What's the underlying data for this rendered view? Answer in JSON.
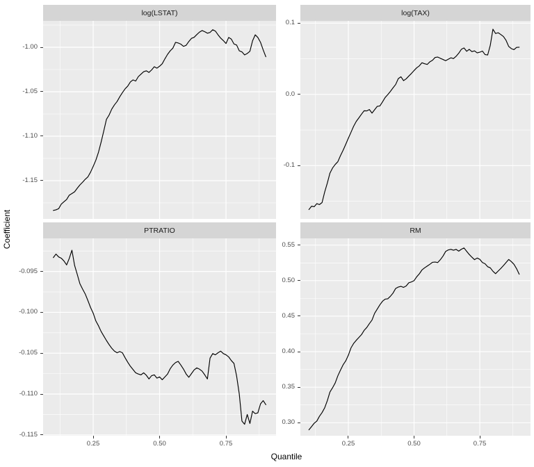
{
  "figure": {
    "y_axis_title": "Coefficient",
    "x_axis_title": "Quantile",
    "background": "#FFFFFF",
    "panel_background": "#EBEBEB",
    "strip_background": "#D5D5D5",
    "grid_major_color": "#FFFFFF",
    "grid_minor_color": "#F5F5F5",
    "line_color": "#000000",
    "axis_text_color": "#4D4D4D",
    "tick_mark_color": "#333333"
  },
  "x_axis": {
    "ticks": [
      {
        "v": 0.25,
        "label": "0.25"
      },
      {
        "v": 0.5,
        "label": "0.50"
      },
      {
        "v": 0.75,
        "label": "0.75"
      }
    ],
    "minor": [
      0.125,
      0.375,
      0.625,
      0.875
    ]
  },
  "chart_data": [
    {
      "type": "line",
      "title": "log(LSTAT)",
      "facet_position": "top-left",
      "xlabel": "Quantile",
      "ylabel": "Coefficient",
      "xlim": [
        0.0615,
        0.9384
      ],
      "ylim": [
        -1.193,
        -0.9703
      ],
      "grid": true,
      "legend": "none",
      "show_x_labels": false,
      "yticks": [
        {
          "v": -1.0,
          "label": "-1.00"
        },
        {
          "v": -1.05,
          "label": "-1.05"
        },
        {
          "v": -1.1,
          "label": "-1.10"
        },
        {
          "v": -1.15,
          "label": "-1.15"
        }
      ],
      "yminor": [
        -0.975,
        -1.025,
        -1.075,
        -1.125,
        -1.175
      ],
      "x": {
        "from": 0.1,
        "to": 0.9,
        "n": 81
      },
      "values": [
        -1.1835,
        -1.1828,
        -1.1815,
        -1.1763,
        -1.1737,
        -1.1712,
        -1.1663,
        -1.1645,
        -1.1625,
        -1.1585,
        -1.1548,
        -1.1518,
        -1.1485,
        -1.1458,
        -1.1405,
        -1.134,
        -1.127,
        -1.118,
        -1.1065,
        -1.094,
        -1.081,
        -1.0762,
        -1.0695,
        -1.0648,
        -1.061,
        -1.0557,
        -1.051,
        -1.0468,
        -1.0437,
        -1.039,
        -1.0367,
        -1.038,
        -1.033,
        -1.0302,
        -1.0275,
        -1.0265,
        -1.0283,
        -1.0255,
        -1.0219,
        -1.0235,
        -1.0213,
        -1.0185,
        -1.013,
        -1.008,
        -1.004,
        -1.001,
        -0.9945,
        -0.9952,
        -0.9965,
        -0.999,
        -0.9978,
        -0.9935,
        -0.99,
        -0.9888,
        -0.9858,
        -0.983,
        -0.9812,
        -0.9825,
        -0.9842,
        -0.9833,
        -0.9803,
        -0.9818,
        -0.986,
        -0.9897,
        -0.9925,
        -0.9958,
        -0.989,
        -0.9908,
        -0.9963,
        -0.9975,
        -1.004,
        -1.0052,
        -1.0086,
        -1.007,
        -1.0045,
        -0.9928,
        -0.986,
        -0.989,
        -0.9945,
        -1.003,
        -1.0107
      ]
    },
    {
      "type": "line",
      "title": "log(TAX)",
      "facet_position": "top-right",
      "xlabel": "Quantile",
      "ylabel": "Coefficient",
      "xlim": [
        0.0675,
        0.943
      ],
      "ylim": [
        -0.1748,
        0.1032
      ],
      "grid": true,
      "legend": "none",
      "show_x_labels": false,
      "yticks": [
        {
          "v": 0.1,
          "label": "0.1"
        },
        {
          "v": 0.0,
          "label": "0.0"
        },
        {
          "v": -0.1,
          "label": "-0.1"
        }
      ],
      "yminor": [
        0.05,
        -0.05,
        -0.15
      ],
      "x": {
        "from": 0.1,
        "to": 0.9,
        "n": 81
      },
      "values": [
        -0.1617,
        -0.157,
        -0.1577,
        -0.1534,
        -0.1547,
        -0.1519,
        -0.137,
        -0.1245,
        -0.1105,
        -0.1033,
        -0.0984,
        -0.0945,
        -0.086,
        -0.0785,
        -0.0702,
        -0.0615,
        -0.0533,
        -0.0448,
        -0.038,
        -0.033,
        -0.0278,
        -0.023,
        -0.0232,
        -0.0213,
        -0.0263,
        -0.0215,
        -0.0168,
        -0.0162,
        -0.0105,
        -0.0044,
        -0.0003,
        0.0042,
        0.0092,
        0.0139,
        0.0221,
        0.0247,
        0.0193,
        0.0218,
        0.0257,
        0.0294,
        0.0335,
        0.0373,
        0.04,
        0.0444,
        0.043,
        0.042,
        0.0457,
        0.0478,
        0.0518,
        0.0524,
        0.0506,
        0.049,
        0.0472,
        0.0493,
        0.0513,
        0.0502,
        0.0535,
        0.0578,
        0.0633,
        0.0652,
        0.0605,
        0.0632,
        0.06,
        0.0611,
        0.0583,
        0.0592,
        0.0608,
        0.0558,
        0.0553,
        0.069,
        0.0915,
        0.0855,
        0.0865,
        0.084,
        0.0812,
        0.0758,
        0.0673,
        0.0642,
        0.0628,
        0.066,
        0.0662
      ]
    },
    {
      "type": "line",
      "title": "PTRATIO",
      "facet_position": "bottom-left",
      "xlabel": "Quantile",
      "ylabel": "Coefficient",
      "xlim": [
        0.0615,
        0.9384
      ],
      "ylim": [
        -0.1151,
        -0.09095
      ],
      "grid": true,
      "legend": "none",
      "show_x_labels": true,
      "yticks": [
        {
          "v": -0.095,
          "label": "-0.095"
        },
        {
          "v": -0.1,
          "label": "-0.100"
        },
        {
          "v": -0.105,
          "label": "-0.105"
        },
        {
          "v": -0.11,
          "label": "-0.110"
        },
        {
          "v": -0.115,
          "label": "-0.115"
        }
      ],
      "yminor": [
        -0.0925,
        -0.0975,
        -0.1025,
        -0.1075,
        -0.1125
      ],
      "x": {
        "from": 0.1,
        "to": 0.9,
        "n": 81
      },
      "values": [
        -0.0933,
        -0.09287,
        -0.09322,
        -0.09338,
        -0.09372,
        -0.0942,
        -0.0934,
        -0.0924,
        -0.09425,
        -0.09535,
        -0.0965,
        -0.09715,
        -0.09775,
        -0.09855,
        -0.0994,
        -0.1001,
        -0.10105,
        -0.10165,
        -0.10235,
        -0.1029,
        -0.10345,
        -0.10395,
        -0.1044,
        -0.10475,
        -0.10495,
        -0.1048,
        -0.10495,
        -0.10555,
        -0.1061,
        -0.1066,
        -0.107,
        -0.1074,
        -0.10755,
        -0.10765,
        -0.1074,
        -0.1077,
        -0.10815,
        -0.10775,
        -0.10765,
        -0.10805,
        -0.1079,
        -0.10825,
        -0.1079,
        -0.10755,
        -0.1069,
        -0.10645,
        -0.10615,
        -0.106,
        -0.10645,
        -0.10695,
        -0.10755,
        -0.10795,
        -0.1075,
        -0.10705,
        -0.1068,
        -0.10695,
        -0.1072,
        -0.10765,
        -0.10815,
        -0.1056,
        -0.10505,
        -0.1052,
        -0.10495,
        -0.10475,
        -0.10505,
        -0.1052,
        -0.10545,
        -0.1059,
        -0.10625,
        -0.1078,
        -0.11,
        -0.1133,
        -0.1137,
        -0.1125,
        -0.1136,
        -0.1121,
        -0.1124,
        -0.1123,
        -0.1112,
        -0.1108,
        -0.1113
      ]
    },
    {
      "type": "line",
      "title": "RM",
      "facet_position": "bottom-right",
      "xlabel": "Quantile",
      "ylabel": "Coefficient",
      "xlim": [
        0.0675,
        0.943
      ],
      "ylim": [
        0.2817,
        0.5595
      ],
      "grid": true,
      "legend": "none",
      "show_x_labels": true,
      "yticks": [
        {
          "v": 0.55,
          "label": "0.55"
        },
        {
          "v": 0.5,
          "label": "0.50"
        },
        {
          "v": 0.45,
          "label": "0.45"
        },
        {
          "v": 0.4,
          "label": "0.40"
        },
        {
          "v": 0.35,
          "label": "0.35"
        },
        {
          "v": 0.3,
          "label": "0.30"
        }
      ],
      "yminor": [
        0.525,
        0.475,
        0.425,
        0.375,
        0.325
      ],
      "x": {
        "from": 0.1,
        "to": 0.9,
        "n": 81
      },
      "values": [
        0.29,
        0.2945,
        0.2993,
        0.3023,
        0.309,
        0.3143,
        0.321,
        0.331,
        0.3433,
        0.3492,
        0.356,
        0.366,
        0.374,
        0.3815,
        0.387,
        0.395,
        0.4053,
        0.4115,
        0.416,
        0.42,
        0.424,
        0.43,
        0.434,
        0.4395,
        0.4445,
        0.454,
        0.46,
        0.466,
        0.471,
        0.474,
        0.4745,
        0.478,
        0.4825,
        0.489,
        0.491,
        0.492,
        0.4905,
        0.4925,
        0.497,
        0.4982,
        0.5,
        0.5054,
        0.5096,
        0.515,
        0.518,
        0.5205,
        0.523,
        0.5258,
        0.5262,
        0.5255,
        0.5295,
        0.5345,
        0.541,
        0.5432,
        0.544,
        0.5428,
        0.544,
        0.5415,
        0.5442,
        0.546,
        0.5413,
        0.5368,
        0.533,
        0.5295,
        0.5318,
        0.53,
        0.5255,
        0.5238,
        0.5196,
        0.518,
        0.5132,
        0.5098,
        0.5135,
        0.5172,
        0.5212,
        0.5255,
        0.5298,
        0.5268,
        0.523,
        0.5168,
        0.509
      ]
    }
  ]
}
